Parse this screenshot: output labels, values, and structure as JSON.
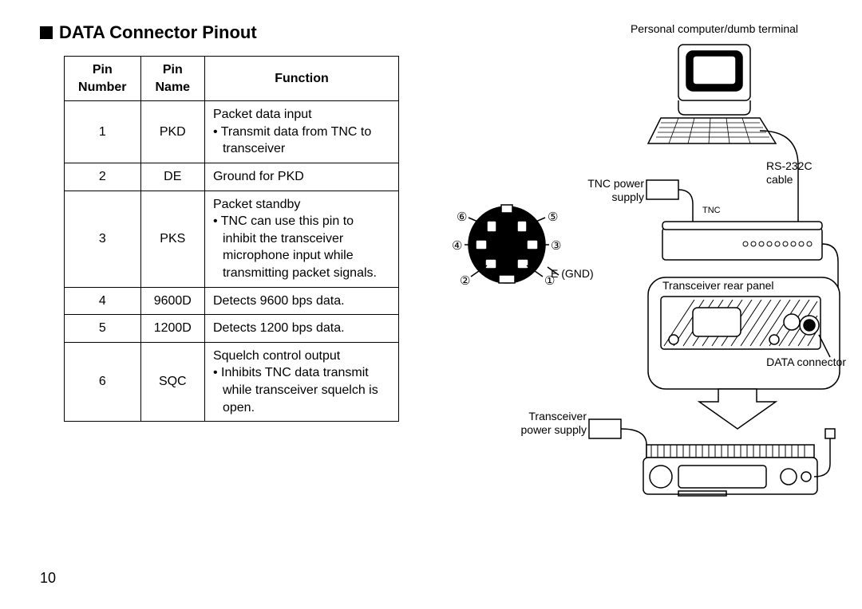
{
  "title": "DATA Connector Pinout",
  "page_number": "10",
  "table": {
    "columns": [
      "Pin Number",
      "Pin Name",
      "Function"
    ],
    "rows": [
      {
        "num": "1",
        "name": "PKD",
        "fn_lead": "Packet data input",
        "fn_sub": "Transmit data from TNC to transceiver"
      },
      {
        "num": "2",
        "name": "DE",
        "fn_lead": "Ground for PKD",
        "fn_sub": ""
      },
      {
        "num": "3",
        "name": "PKS",
        "fn_lead": "Packet standby",
        "fn_sub": "TNC can use this pin to inhibit the transceiver microphone input while transmitting packet signals."
      },
      {
        "num": "4",
        "name": "9600D",
        "fn_lead": "Detects 9600 bps data.",
        "fn_sub": ""
      },
      {
        "num": "5",
        "name": "1200D",
        "fn_lead": "Detects 1200 bps data.",
        "fn_sub": ""
      },
      {
        "num": "6",
        "name": "SQC",
        "fn_lead": "Squelch control output",
        "fn_sub": "Inhibits TNC data transmit while transceiver squelch is open."
      }
    ]
  },
  "connector": {
    "pins": {
      "p1": "①",
      "p2": "②",
      "p3": "③",
      "p4": "④",
      "p5": "⑤",
      "p6": "⑥"
    },
    "e_gnd": "E (GND)"
  },
  "diagram": {
    "pc_label": "Personal computer/dumb terminal",
    "rs232_label": "RS-232C cable",
    "tnc_power_label": "TNC power supply",
    "tnc_label": "TNC",
    "rear_panel_label": "Transceiver rear panel",
    "data_connector_label": "DATA connector",
    "xcvr_power_label": "Transceiver power supply"
  },
  "colors": {
    "stroke": "#000000",
    "bg": "#ffffff",
    "fill_dark": "#000000",
    "hatch": "#000000"
  }
}
